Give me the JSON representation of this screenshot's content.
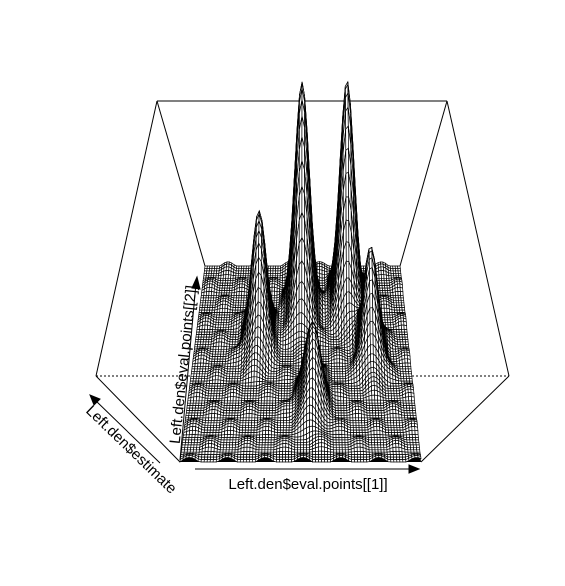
{
  "chart_data": {
    "type": "surface-3d",
    "title": "",
    "xlabel": "Left.den$eval.points[[1]]",
    "ylabel": "Left.den$eval.points[[2]]",
    "zlabel": "Left.den$estimate",
    "style": "wireframe perspective (R persp)",
    "box": true,
    "peaks": [
      {
        "u": 0.5,
        "v": 0.78,
        "height": 1.0
      },
      {
        "u": 0.72,
        "v": 0.82,
        "height": 0.95
      },
      {
        "u": 0.3,
        "v": 0.62,
        "height": 0.55
      },
      {
        "u": 0.82,
        "v": 0.55,
        "height": 0.45
      },
      {
        "u": 0.55,
        "v": 0.3,
        "height": 0.35
      }
    ]
  }
}
